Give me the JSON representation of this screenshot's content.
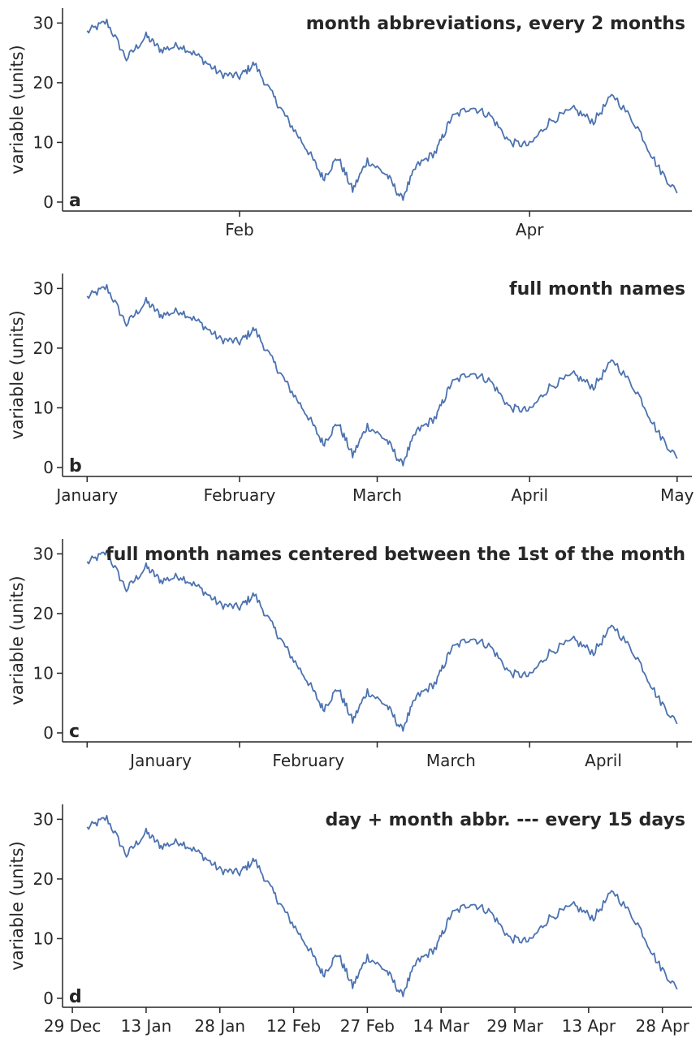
{
  "series_color": "#4c72b0",
  "chart_data": [
    {
      "type": "line",
      "panel_letter": "a",
      "title": "month abbreviations, every 2 months",
      "ylabel": "variable (units)",
      "xlabel": "",
      "ylim": [
        -1.5,
        32.5
      ],
      "xlim": [
        "2020-12-27",
        "2021-05-04"
      ],
      "grid": false,
      "yticks": [
        0,
        10,
        20,
        30
      ],
      "xticks": [
        {
          "date": "2021-02-01",
          "label": "Feb"
        },
        {
          "date": "2021-04-01",
          "label": "Apr"
        }
      ],
      "minor_xticks": [],
      "x": [
        "2021-01-01",
        "2021-01-05",
        "2021-01-09",
        "2021-01-13",
        "2021-01-16",
        "2021-01-20",
        "2021-01-24",
        "2021-01-28",
        "2021-02-01",
        "2021-02-04",
        "2021-02-08",
        "2021-02-11",
        "2021-02-15",
        "2021-02-18",
        "2021-02-21",
        "2021-02-24",
        "2021-02-27",
        "2021-03-03",
        "2021-03-06",
        "2021-03-09",
        "2021-03-13",
        "2021-03-16",
        "2021-03-20",
        "2021-03-24",
        "2021-03-28",
        "2021-04-01",
        "2021-04-05",
        "2021-04-10",
        "2021-04-14",
        "2021-04-18",
        "2021-04-23",
        "2021-04-27",
        "2021-05-01"
      ],
      "y": [
        28.5,
        30.2,
        24.0,
        27.8,
        25.5,
        26.3,
        24.2,
        21.5,
        21.0,
        23.2,
        17.5,
        13.5,
        8.5,
        4.0,
        7.5,
        2.0,
        7.0,
        4.5,
        0.5,
        6.0,
        8.5,
        14.0,
        16.0,
        14.5,
        10.0,
        9.5,
        13.5,
        15.5,
        13.5,
        18.0,
        12.5,
        6.0,
        1.5
      ]
    },
    {
      "type": "line",
      "panel_letter": "b",
      "title": "full month names",
      "ylabel": "variable (units)",
      "xlabel": "",
      "ylim": [
        -1.5,
        32.5
      ],
      "xlim": [
        "2020-12-27",
        "2021-05-04"
      ],
      "grid": false,
      "yticks": [
        0,
        10,
        20,
        30
      ],
      "xticks": [
        {
          "date": "2021-01-01",
          "label": "January"
        },
        {
          "date": "2021-02-01",
          "label": "February"
        },
        {
          "date": "2021-03-01",
          "label": "March"
        },
        {
          "date": "2021-04-01",
          "label": "April"
        },
        {
          "date": "2021-05-01",
          "label": "May"
        }
      ],
      "minor_xticks": [],
      "x": [
        "2021-01-01",
        "2021-01-05",
        "2021-01-09",
        "2021-01-13",
        "2021-01-16",
        "2021-01-20",
        "2021-01-24",
        "2021-01-28",
        "2021-02-01",
        "2021-02-04",
        "2021-02-08",
        "2021-02-11",
        "2021-02-15",
        "2021-02-18",
        "2021-02-21",
        "2021-02-24",
        "2021-02-27",
        "2021-03-03",
        "2021-03-06",
        "2021-03-09",
        "2021-03-13",
        "2021-03-16",
        "2021-03-20",
        "2021-03-24",
        "2021-03-28",
        "2021-04-01",
        "2021-04-05",
        "2021-04-10",
        "2021-04-14",
        "2021-04-18",
        "2021-04-23",
        "2021-04-27",
        "2021-05-01"
      ],
      "y": [
        28.5,
        30.2,
        24.0,
        27.8,
        25.5,
        26.3,
        24.2,
        21.5,
        21.0,
        23.2,
        17.5,
        13.5,
        8.5,
        4.0,
        7.5,
        2.0,
        7.0,
        4.5,
        0.5,
        6.0,
        8.5,
        14.0,
        16.0,
        14.5,
        10.0,
        9.5,
        13.5,
        15.5,
        13.5,
        18.0,
        12.5,
        6.0,
        1.5
      ]
    },
    {
      "type": "line",
      "panel_letter": "c",
      "title": "full month names centered between the 1st of the month",
      "ylabel": "variable (units)",
      "xlabel": "",
      "ylim": [
        -1.5,
        32.5
      ],
      "xlim": [
        "2020-12-27",
        "2021-05-04"
      ],
      "grid": false,
      "yticks": [
        0,
        10,
        20,
        30
      ],
      "xticks": [
        {
          "date": "2021-01-16",
          "label": "January"
        },
        {
          "date": "2021-02-15",
          "label": "February"
        },
        {
          "date": "2021-03-16",
          "label": "March"
        },
        {
          "date": "2021-04-16",
          "label": "April"
        }
      ],
      "minor_xticks": [
        "2021-01-01",
        "2021-02-01",
        "2021-03-01",
        "2021-04-01",
        "2021-05-01"
      ],
      "x": [
        "2021-01-01",
        "2021-01-05",
        "2021-01-09",
        "2021-01-13",
        "2021-01-16",
        "2021-01-20",
        "2021-01-24",
        "2021-01-28",
        "2021-02-01",
        "2021-02-04",
        "2021-02-08",
        "2021-02-11",
        "2021-02-15",
        "2021-02-18",
        "2021-02-21",
        "2021-02-24",
        "2021-02-27",
        "2021-03-03",
        "2021-03-06",
        "2021-03-09",
        "2021-03-13",
        "2021-03-16",
        "2021-03-20",
        "2021-03-24",
        "2021-03-28",
        "2021-04-01",
        "2021-04-05",
        "2021-04-10",
        "2021-04-14",
        "2021-04-18",
        "2021-04-23",
        "2021-04-27",
        "2021-05-01"
      ],
      "y": [
        28.5,
        30.2,
        24.0,
        27.8,
        25.5,
        26.3,
        24.2,
        21.5,
        21.0,
        23.2,
        17.5,
        13.5,
        8.5,
        4.0,
        7.5,
        2.0,
        7.0,
        4.5,
        0.5,
        6.0,
        8.5,
        14.0,
        16.0,
        14.5,
        10.0,
        9.5,
        13.5,
        15.5,
        13.5,
        18.0,
        12.5,
        6.0,
        1.5
      ]
    },
    {
      "type": "line",
      "panel_letter": "d",
      "title": "day + month abbr. --- every 15 days",
      "ylabel": "variable (units)",
      "xlabel": "",
      "ylim": [
        -1.5,
        32.5
      ],
      "xlim": [
        "2020-12-27",
        "2021-05-04"
      ],
      "grid": false,
      "yticks": [
        0,
        10,
        20,
        30
      ],
      "xticks": [
        {
          "date": "2020-12-29",
          "label": "29 Dec"
        },
        {
          "date": "2021-01-13",
          "label": "13 Jan"
        },
        {
          "date": "2021-01-28",
          "label": "28 Jan"
        },
        {
          "date": "2021-02-12",
          "label": "12 Feb"
        },
        {
          "date": "2021-02-27",
          "label": "27 Feb"
        },
        {
          "date": "2021-03-14",
          "label": "14 Mar"
        },
        {
          "date": "2021-03-29",
          "label": "29 Mar"
        },
        {
          "date": "2021-04-13",
          "label": "13 Apr"
        },
        {
          "date": "2021-04-28",
          "label": "28 Apr"
        }
      ],
      "minor_xticks": [],
      "x": [
        "2021-01-01",
        "2021-01-05",
        "2021-01-09",
        "2021-01-13",
        "2021-01-16",
        "2021-01-20",
        "2021-01-24",
        "2021-01-28",
        "2021-02-01",
        "2021-02-04",
        "2021-02-08",
        "2021-02-11",
        "2021-02-15",
        "2021-02-18",
        "2021-02-21",
        "2021-02-24",
        "2021-02-27",
        "2021-03-03",
        "2021-03-06",
        "2021-03-09",
        "2021-03-13",
        "2021-03-16",
        "2021-03-20",
        "2021-03-24",
        "2021-03-28",
        "2021-04-01",
        "2021-04-05",
        "2021-04-10",
        "2021-04-14",
        "2021-04-18",
        "2021-04-23",
        "2021-04-27",
        "2021-05-01"
      ],
      "y": [
        28.5,
        30.2,
        24.0,
        27.8,
        25.5,
        26.3,
        24.2,
        21.5,
        21.0,
        23.2,
        17.5,
        13.5,
        8.5,
        4.0,
        7.5,
        2.0,
        7.0,
        4.5,
        0.5,
        6.0,
        8.5,
        14.0,
        16.0,
        14.5,
        10.0,
        9.5,
        13.5,
        15.5,
        13.5,
        18.0,
        12.5,
        6.0,
        1.5
      ]
    }
  ]
}
